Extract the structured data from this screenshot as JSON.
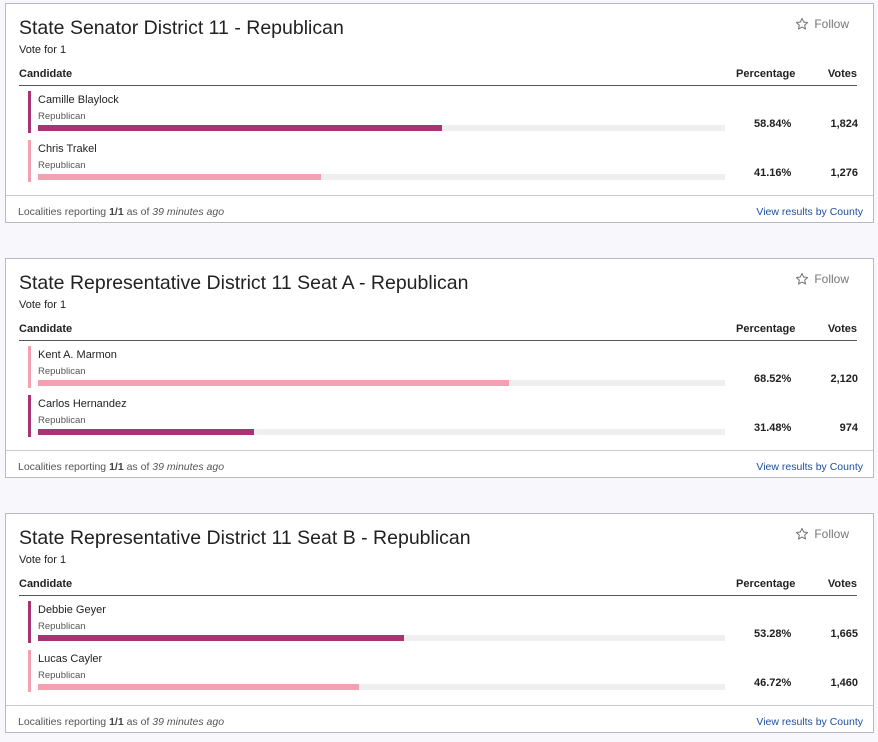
{
  "colors": {
    "dark": "#a83272",
    "light": "#f4a0b3"
  },
  "common": {
    "follow_label": "Follow",
    "vote_for": "Vote for 1",
    "col_candidate": "Candidate",
    "col_percentage": "Percentage",
    "col_votes": "Votes",
    "reporting_prefix": "Localities reporting",
    "reporting_count": "1/1",
    "reporting_asof": "as of",
    "reporting_time": "39 minutes ago",
    "county_link": "View results by County"
  },
  "races": [
    {
      "title": "State Senator District 11 - Republican",
      "candidates": [
        {
          "name": "Camille Blaylock",
          "party": "Republican",
          "percentage": "58.84%",
          "share": 0.5884,
          "votes": "1,824",
          "color": "dark"
        },
        {
          "name": "Chris Trakel",
          "party": "Republican",
          "percentage": "41.16%",
          "share": 0.4116,
          "votes": "1,276",
          "color": "light"
        }
      ]
    },
    {
      "title": "State Representative District 11 Seat A - Republican",
      "candidates": [
        {
          "name": "Kent A. Marmon",
          "party": "Republican",
          "percentage": "68.52%",
          "share": 0.6852,
          "votes": "2,120",
          "color": "light"
        },
        {
          "name": "Carlos Hernandez",
          "party": "Republican",
          "percentage": "31.48%",
          "share": 0.3148,
          "votes": "974",
          "color": "dark"
        }
      ]
    },
    {
      "title": "State Representative District 11 Seat B - Republican",
      "candidates": [
        {
          "name": "Debbie Geyer",
          "party": "Republican",
          "percentage": "53.28%",
          "share": 0.5328,
          "votes": "1,665",
          "color": "dark"
        },
        {
          "name": "Lucas Cayler",
          "party": "Republican",
          "percentage": "46.72%",
          "share": 0.4672,
          "votes": "1,460",
          "color": "light"
        }
      ]
    }
  ]
}
